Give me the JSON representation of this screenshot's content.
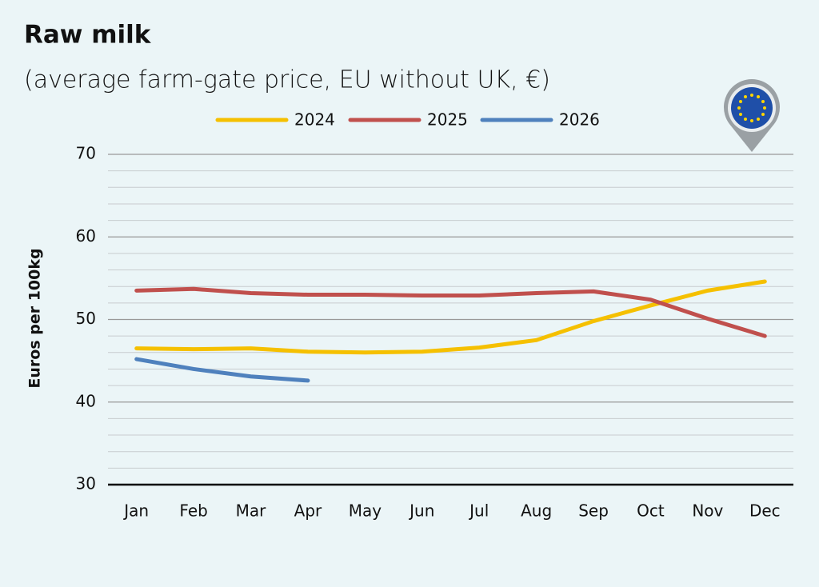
{
  "chart_data": {
    "type": "line",
    "title": "Raw milk",
    "subtitle": "(average farm-gate price, EU without UK, €)",
    "y_axis_label": "Euros per 100kg",
    "categories": [
      "Jan",
      "Feb",
      "Mar",
      "Apr",
      "May",
      "Jun",
      "Jul",
      "Aug",
      "Sep",
      "Oct",
      "Nov",
      "Dec"
    ],
    "series": [
      {
        "name": "2024",
        "color": "#f5c000",
        "values": [
          46.5,
          46.4,
          46.5,
          46.1,
          46.0,
          46.1,
          46.6,
          47.5,
          49.8,
          51.7,
          53.5,
          54.6
        ]
      },
      {
        "name": "2025",
        "color": "#c0504d",
        "values": [
          53.5,
          53.7,
          53.2,
          53.0,
          53.0,
          52.9,
          52.9,
          53.2,
          53.4,
          52.4,
          50.1,
          48.0
        ]
      },
      {
        "name": "2026",
        "color": "#4f81bd",
        "values": [
          45.2,
          44.0,
          43.1,
          42.6,
          null,
          null,
          null,
          null,
          null,
          null,
          null,
          null
        ]
      }
    ],
    "ylim": [
      30,
      70
    ],
    "yticks": [
      30,
      40,
      50,
      60,
      70
    ],
    "minor_yticks": [
      32,
      34,
      36,
      38,
      42,
      44,
      46,
      48,
      52,
      54,
      56,
      58,
      62,
      64,
      66,
      68
    ],
    "grid": true,
    "legend": "top"
  }
}
